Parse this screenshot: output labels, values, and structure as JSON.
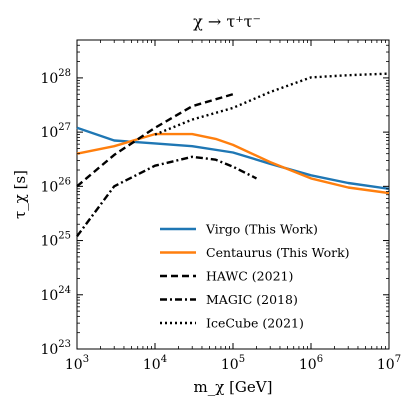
{
  "chart_data": {
    "type": "line",
    "title": "χ → τ⁺τ⁻",
    "xlabel": "m_χ [GeV]",
    "ylabel": "τ_χ [s]",
    "xscale": "log",
    "yscale": "log",
    "xlim": [
      1000,
      10000000
    ],
    "ylim": [
      1e+23,
      5e+28
    ],
    "x_ticks": [
      {
        "value": 1000,
        "base": "10",
        "exp": "3"
      },
      {
        "value": 10000,
        "base": "10",
        "exp": "4"
      },
      {
        "value": 100000,
        "base": "10",
        "exp": "5"
      },
      {
        "value": 1000000,
        "base": "10",
        "exp": "6"
      },
      {
        "value": 10000000,
        "base": "10",
        "exp": "7"
      }
    ],
    "y_ticks": [
      {
        "value": 1e+23,
        "base": "10",
        "exp": "23"
      },
      {
        "value": 1e+24,
        "base": "10",
        "exp": "24"
      },
      {
        "value": 1e+25,
        "base": "10",
        "exp": "25"
      },
      {
        "value": 1e+26,
        "base": "10",
        "exp": "26"
      },
      {
        "value": 1e+27,
        "base": "10",
        "exp": "27"
      },
      {
        "value": 1e+28,
        "base": "10",
        "exp": "28"
      }
    ],
    "grid": false,
    "legend_position": "lower-right",
    "series": [
      {
        "name": "Virgo (This Work)",
        "color": "#1f77b4",
        "dash": "solid",
        "x": [
          1000,
          3000,
          10000,
          30000,
          100000,
          300000,
          1000000,
          3000000,
          10000000
        ],
        "y": [
          1.2e+27,
          7e+26,
          6.2e+26,
          5.5e+26,
          4.2e+26,
          2.6e+26,
          1.6e+26,
          1.15e+26,
          9e+25
        ]
      },
      {
        "name": "Centaurus (This Work)",
        "color": "#ff7f0e",
        "dash": "solid",
        "x": [
          1000,
          3000,
          10000,
          30000,
          60000,
          100000,
          300000,
          1000000,
          3000000,
          10000000
        ],
        "y": [
          4e+26,
          5.5e+26,
          9.2e+26,
          9.2e+26,
          7.5e+26,
          5.8e+26,
          2.8e+26,
          1.4e+26,
          9.5e+25,
          7.5e+25
        ]
      },
      {
        "name": "HAWC (2021)",
        "color": "#000000",
        "dash": "dashed",
        "x": [
          1000,
          3000,
          10000,
          30000,
          100000
        ],
        "y": [
          1e+26,
          3.8e+26,
          1.2e+27,
          3e+27,
          5e+27
        ]
      },
      {
        "name": "MAGIC (2018)",
        "color": "#000000",
        "dash": "dashdot",
        "x": [
          1000,
          3000,
          10000,
          30000,
          60000,
          100000,
          200000
        ],
        "y": [
          1.2e+25,
          1e+26,
          2.4e+26,
          3.5e+26,
          3.1e+26,
          2.3e+26,
          1.4e+26
        ]
      },
      {
        "name": "IceCube (2021)",
        "color": "#000000",
        "dash": "dotted",
        "x": [
          10000,
          30000,
          100000,
          300000,
          1000000,
          3000000,
          10000000
        ],
        "y": [
          9e+26,
          1.7e+27,
          2.8e+27,
          5.5e+27,
          1.02e+28,
          1.12e+28,
          1.2e+28
        ]
      }
    ]
  }
}
